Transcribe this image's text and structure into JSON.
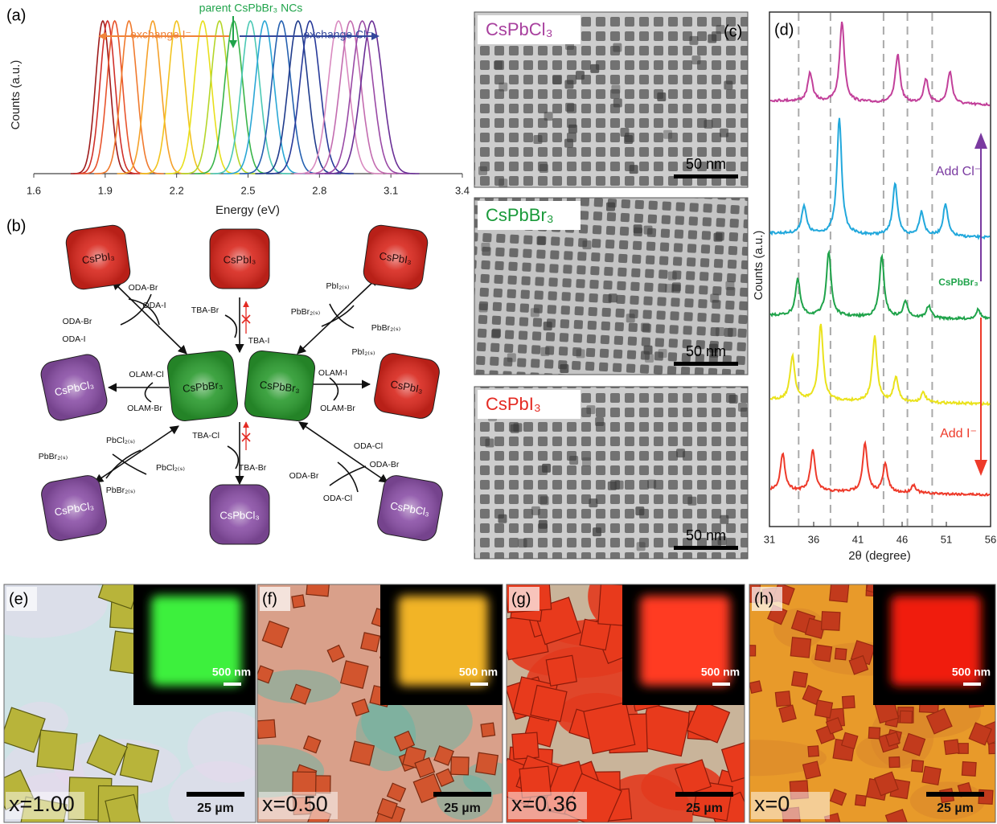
{
  "chart_data": [
    {
      "type": "spectra",
      "label": "(a)",
      "ylabel": "Counts (a.u.)",
      "xlabel": "Energy (eV)",
      "xlim": [
        1.6,
        3.4
      ],
      "xticks": [
        1.6,
        1.9,
        2.2,
        2.5,
        2.8,
        3.1,
        3.4
      ],
      "annotations": [
        {
          "text": "exchange I⁻",
          "color": "#f0843a"
        },
        {
          "text": "parent CsPbBr₃ NCs",
          "color": "#1fa34a"
        },
        {
          "text": "exchange Cl⁻",
          "color": "#34489c"
        }
      ],
      "peaks": [
        {
          "x": 1.89,
          "color": "#9e1b1b"
        },
        {
          "x": 1.91,
          "color": "#d0302a"
        },
        {
          "x": 1.94,
          "color": "#e8542c"
        },
        {
          "x": 2.0,
          "color": "#f07a2e"
        },
        {
          "x": 2.1,
          "color": "#f5a12a"
        },
        {
          "x": 2.2,
          "color": "#f2c31f"
        },
        {
          "x": 2.31,
          "color": "#e8df1c"
        },
        {
          "x": 2.38,
          "color": "#b5d62a"
        },
        {
          "x": 2.44,
          "color": "#3ab54a"
        },
        {
          "x": 2.51,
          "color": "#4cc9b5"
        },
        {
          "x": 2.57,
          "color": "#2aa7d6"
        },
        {
          "x": 2.64,
          "color": "#2560b0"
        },
        {
          "x": 2.71,
          "color": "#1f3b8c"
        },
        {
          "x": 2.76,
          "color": "#283a9a"
        },
        {
          "x": 2.88,
          "color": "#d98ac0"
        },
        {
          "x": 2.93,
          "color": "#c36cb0"
        },
        {
          "x": 2.98,
          "color": "#9a4aa6"
        },
        {
          "x": 3.02,
          "color": "#6a2f96"
        }
      ]
    },
    {
      "type": "xrd",
      "label": "(d)",
      "ylabel": "Counts (a.u.)",
      "xlabel": "2θ (degree)",
      "xlim": [
        31,
        56
      ],
      "xticks": [
        31,
        36,
        41,
        46,
        51,
        56
      ],
      "reference_lines": [
        34.3,
        37.9,
        43.9,
        46.6,
        49.4
      ],
      "annotations": [
        {
          "text": "Add Cl⁻",
          "color": "#7a3aa0"
        },
        {
          "text": "CsPbBr₃",
          "color": "#1fa34a"
        },
        {
          "text": "Add I⁻",
          "color": "#ee3a2a"
        }
      ],
      "traces": [
        {
          "color": "#c2409a",
          "peaks": [
            {
              "x": 35.6,
              "height": 35
            },
            {
              "x": 39.2,
              "height": 100
            },
            {
              "x": 45.5,
              "height": 60
            },
            {
              "x": 48.7,
              "height": 30
            },
            {
              "x": 51.4,
              "height": 40
            }
          ]
        },
        {
          "color": "#22a8dc",
          "peaks": [
            {
              "x": 34.9,
              "height": 35
            },
            {
              "x": 38.9,
              "height": 145
            },
            {
              "x": 45.2,
              "height": 65
            },
            {
              "x": 48.2,
              "height": 30
            },
            {
              "x": 50.9,
              "height": 40
            }
          ]
        },
        {
          "color": "#1fa34a",
          "peaks": [
            {
              "x": 34.2,
              "height": 45
            },
            {
              "x": 37.7,
              "height": 80
            },
            {
              "x": 43.7,
              "height": 75
            },
            {
              "x": 46.4,
              "height": 20
            },
            {
              "x": 49.0,
              "height": 15
            },
            {
              "x": 54.6,
              "height": 12
            }
          ]
        },
        {
          "color": "#eae21c",
          "peaks": [
            {
              "x": 33.6,
              "height": 55
            },
            {
              "x": 36.8,
              "height": 95
            },
            {
              "x": 42.9,
              "height": 80
            },
            {
              "x": 45.3,
              "height": 30
            },
            {
              "x": 48.4,
              "height": 12
            }
          ]
        },
        {
          "color": "#ee3a2a",
          "peaks": [
            {
              "x": 32.5,
              "height": 45
            },
            {
              "x": 35.9,
              "height": 50
            },
            {
              "x": 41.8,
              "height": 60
            },
            {
              "x": 44.1,
              "height": 35
            },
            {
              "x": 47.3,
              "height": 10
            }
          ]
        }
      ]
    }
  ],
  "scheme": {
    "label": "(b)",
    "nodes": [
      {
        "text": "CsPbI₃",
        "color": "#d8261c",
        "text_color": "#2a0a0a"
      },
      {
        "text": "CsPbI₃",
        "color": "#d8261c",
        "text_color": "#2a0a0a"
      },
      {
        "text": "CsPbI₃",
        "color": "#d8261c",
        "text_color": "#2a0a0a"
      },
      {
        "text": "CsPbCl₃",
        "color": "#8a4fa6",
        "text_color": "#ffffff"
      },
      {
        "text": "CsPbBr₃",
        "color": "#2a9a2e",
        "text_color": "#0a1a0a"
      },
      {
        "text": "CsPbBr₃",
        "color": "#2a9a2e",
        "text_color": "#0a1a0a"
      },
      {
        "text": "CsPbI₃",
        "color": "#d8261c",
        "text_color": "#2a0a0a"
      },
      {
        "text": "CsPbCl₃",
        "color": "#8a4fa6",
        "text_color": "#ffffff"
      },
      {
        "text": "CsPbCl₃",
        "color": "#8a4fa6",
        "text_color": "#ffffff"
      },
      {
        "text": "CsPbCl₃",
        "color": "#8a4fa6",
        "text_color": "#ffffff"
      }
    ],
    "reagents": [
      "ODA-Br",
      "ODA-I",
      "ODA-Br",
      "ODA-I",
      "TBA-Br",
      "TBA-I",
      "PbI₂₍ₛ₎",
      "PbBr₂₍ₛ₎",
      "PbBr₂₍ₛ₎",
      "PbI₂₍ₛ₎",
      "OLAM-Cl",
      "OLAM-Br",
      "OLAM-I",
      "OLAM-Br",
      "PbBr₂₍ₛ₎",
      "PbCl₂₍ₛ₎",
      "PbCl₂₍ₛ₎",
      "PbBr₂₍ₛ₎",
      "TBA-Cl",
      "TBA-Br",
      "ODA-Cl",
      "ODA-Br",
      "ODA-Br",
      "ODA-Cl"
    ]
  },
  "tem": {
    "label": "(c)",
    "images": [
      {
        "formula": "CsPbCl₃",
        "color": "#a8409e",
        "scale": "50 nm"
      },
      {
        "formula": "CsPbBr₃",
        "color": "#1a9a3a",
        "scale": "50 nm"
      },
      {
        "formula": "CsPbI₃",
        "color": "#e42a22",
        "scale": "50 nm"
      }
    ]
  },
  "micrographs": [
    {
      "label": "(e)",
      "composition": "x=1.00",
      "inset_scale": "500 nm",
      "scale": "25 µm",
      "inset_color": "#3cf03c"
    },
    {
      "label": "(f)",
      "composition": "x=0.50",
      "inset_scale": "500 nm",
      "scale": "25 µm",
      "inset_color": "#f2b428"
    },
    {
      "label": "(g)",
      "composition": "x=0.36",
      "inset_scale": "500 nm",
      "scale": "25 µm",
      "inset_color": "#ff3a22"
    },
    {
      "label": "(h)",
      "composition": "x=0",
      "inset_scale": "500 nm",
      "scale": "25 µm",
      "inset_color": "#f01c10"
    }
  ]
}
